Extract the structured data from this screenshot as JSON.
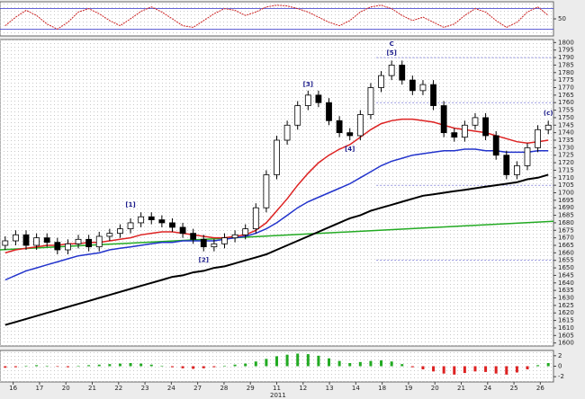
{
  "chart_data": [
    {
      "type": "oscillator",
      "panel": "top",
      "ylim": [
        0,
        100
      ],
      "yticks": [
        50
      ],
      "levels": [
        20,
        80
      ],
      "level_color": "#3333cc",
      "color": "#cc2222",
      "values": [
        30,
        55,
        75,
        60,
        35,
        20,
        40,
        70,
        80,
        65,
        45,
        30,
        50,
        72,
        85,
        70,
        50,
        30,
        25,
        45,
        65,
        80,
        75,
        60,
        70,
        85,
        90,
        88,
        80,
        70,
        55,
        40,
        30,
        45,
        70,
        85,
        90,
        80,
        60,
        45,
        55,
        40,
        25,
        35,
        60,
        80,
        70,
        45,
        25,
        40,
        70,
        85,
        60
      ]
    },
    {
      "type": "candlestick",
      "panel": "main",
      "ylim": [
        1598,
        1802
      ],
      "yticks": [
        1800,
        1795,
        1790,
        1785,
        1780,
        1775,
        1770,
        1765,
        1760,
        1755,
        1750,
        1745,
        1740,
        1735,
        1730,
        1725,
        1720,
        1715,
        1710,
        1705,
        1700,
        1695,
        1690,
        1685,
        1680,
        1675,
        1670,
        1665,
        1660,
        1655,
        1650,
        1645,
        1640,
        1635,
        1630,
        1625,
        1620,
        1615,
        1610,
        1605,
        1600
      ],
      "open": [
        1665,
        1668,
        1672,
        1665,
        1670,
        1667,
        1662,
        1666,
        1669,
        1664,
        1671,
        1673,
        1676,
        1680,
        1684,
        1682,
        1680,
        1677,
        1673,
        1669,
        1664,
        1666,
        1670,
        1672,
        1676,
        1690,
        1712,
        1735,
        1745,
        1758,
        1765,
        1760,
        1748,
        1740,
        1738,
        1752,
        1770,
        1778,
        1785,
        1775,
        1768,
        1772,
        1758,
        1740,
        1737,
        1745,
        1750,
        1738,
        1725,
        1712,
        1718,
        1730,
        1742
      ],
      "high": [
        1671,
        1675,
        1675,
        1673,
        1673,
        1670,
        1669,
        1672,
        1672,
        1674,
        1676,
        1679,
        1683,
        1687,
        1687,
        1685,
        1683,
        1680,
        1676,
        1672,
        1669,
        1673,
        1675,
        1679,
        1693,
        1715,
        1738,
        1748,
        1761,
        1768,
        1768,
        1763,
        1751,
        1743,
        1755,
        1773,
        1781,
        1788,
        1788,
        1778,
        1775,
        1775,
        1761,
        1743,
        1748,
        1753,
        1753,
        1741,
        1728,
        1721,
        1733,
        1745,
        1748
      ],
      "low": [
        1662,
        1665,
        1662,
        1662,
        1664,
        1659,
        1659,
        1663,
        1661,
        1661,
        1668,
        1670,
        1673,
        1677,
        1679,
        1677,
        1674,
        1670,
        1666,
        1661,
        1661,
        1663,
        1667,
        1669,
        1673,
        1687,
        1709,
        1732,
        1742,
        1755,
        1757,
        1745,
        1737,
        1735,
        1735,
        1749,
        1767,
        1775,
        1772,
        1765,
        1765,
        1755,
        1737,
        1734,
        1734,
        1742,
        1735,
        1722,
        1709,
        1709,
        1715,
        1727,
        1739
      ],
      "close": [
        1668,
        1672,
        1665,
        1670,
        1667,
        1662,
        1666,
        1669,
        1664,
        1671,
        1673,
        1676,
        1680,
        1684,
        1682,
        1680,
        1677,
        1673,
        1669,
        1664,
        1666,
        1670,
        1672,
        1676,
        1690,
        1712,
        1735,
        1745,
        1758,
        1765,
        1760,
        1748,
        1740,
        1738,
        1752,
        1770,
        1778,
        1785,
        1775,
        1768,
        1772,
        1758,
        1740,
        1737,
        1745,
        1750,
        1738,
        1725,
        1712,
        1718,
        1730,
        1742,
        1745
      ],
      "series": [
        {
          "color": "#000000",
          "values": [
            1612,
            1614,
            1616,
            1618,
            1620,
            1622,
            1624,
            1626,
            1628,
            1630,
            1632,
            1634,
            1636,
            1638,
            1640,
            1642,
            1644,
            1645,
            1647,
            1648,
            1650,
            1651,
            1653,
            1655,
            1657,
            1659,
            1662,
            1665,
            1668,
            1671,
            1674,
            1677,
            1680,
            1683,
            1685,
            1688,
            1690,
            1692,
            1694,
            1696,
            1698,
            1699,
            1700,
            1701,
            1702,
            1703,
            1704,
            1705,
            1706,
            1707,
            1709,
            1710,
            1712
          ]
        },
        {
          "color": "#2233cc",
          "values": [
            1642,
            1645,
            1648,
            1650,
            1652,
            1654,
            1656,
            1658,
            1659,
            1660,
            1662,
            1663,
            1664,
            1665,
            1666,
            1667,
            1667,
            1668,
            1668,
            1668,
            1668,
            1669,
            1670,
            1671,
            1673,
            1676,
            1680,
            1685,
            1690,
            1694,
            1697,
            1700,
            1703,
            1706,
            1710,
            1714,
            1718,
            1721,
            1723,
            1725,
            1726,
            1727,
            1728,
            1728,
            1729,
            1729,
            1728,
            1728,
            1727,
            1727,
            1727,
            1728,
            1728
          ]
        },
        {
          "color": "#dd2222",
          "values": [
            1660,
            1662,
            1663,
            1664,
            1665,
            1665,
            1666,
            1666,
            1667,
            1667,
            1668,
            1669,
            1670,
            1672,
            1673,
            1674,
            1674,
            1673,
            1672,
            1671,
            1670,
            1670,
            1671,
            1672,
            1675,
            1680,
            1688,
            1696,
            1705,
            1713,
            1720,
            1725,
            1729,
            1732,
            1737,
            1742,
            1746,
            1748,
            1749,
            1749,
            1748,
            1747,
            1745,
            1743,
            1742,
            1741,
            1740,
            1738,
            1736,
            1734,
            1733,
            1734,
            1735
          ]
        }
      ],
      "trend_line": {
        "color": "#22aa22",
        "x": [
          0,
          52
        ],
        "values": [
          1662,
          1681
        ]
      },
      "levels": [
        1790,
        1760,
        1705,
        1655
      ],
      "annotations": [
        {
          "text": "[1]",
          "x": 12,
          "y": 1692
        },
        {
          "text": "[2]",
          "x": 19,
          "y": 1655
        },
        {
          "text": "[3]",
          "x": 29,
          "y": 1772
        },
        {
          "text": "[4]",
          "x": 33,
          "y": 1729
        },
        {
          "text": "[5]",
          "x": 37,
          "y": 1793
        },
        {
          "text": "C",
          "x": 37,
          "y": 1799
        },
        {
          "text": "(c)",
          "x": 52,
          "y": 1753
        }
      ],
      "xlabels": [
        "16",
        "17",
        "20",
        "21",
        "22",
        "23",
        "24",
        "27",
        "28",
        "29",
        "11",
        "12",
        "13",
        "14",
        "18",
        "19",
        "20",
        "21",
        "24",
        "25",
        "26"
      ],
      "year": "2011"
    },
    {
      "type": "histogram",
      "panel": "bottom",
      "ylim": [
        -3,
        3
      ],
      "yticks": [
        2,
        0,
        -2
      ],
      "up_color": "#22aa22",
      "down_color": "#dd2222",
      "values": [
        -0.3,
        -0.2,
        0.1,
        0.2,
        0.1,
        -0.1,
        -0.2,
        0.1,
        0.2,
        0.3,
        0.4,
        0.5,
        0.6,
        0.5,
        0.3,
        0.1,
        -0.2,
        -0.4,
        -0.5,
        -0.4,
        -0.2,
        0.1,
        0.3,
        0.5,
        0.9,
        1.4,
        1.9,
        2.2,
        2.4,
        2.3,
        2.0,
        1.5,
        1.0,
        0.6,
        0.8,
        1.0,
        1.1,
        0.9,
        0.4,
        -0.2,
        -0.6,
        -1.0,
        -1.4,
        -1.6,
        -1.3,
        -1.0,
        -1.1,
        -1.4,
        -1.6,
        -1.2,
        -0.6,
        0.2,
        0.6
      ]
    }
  ]
}
